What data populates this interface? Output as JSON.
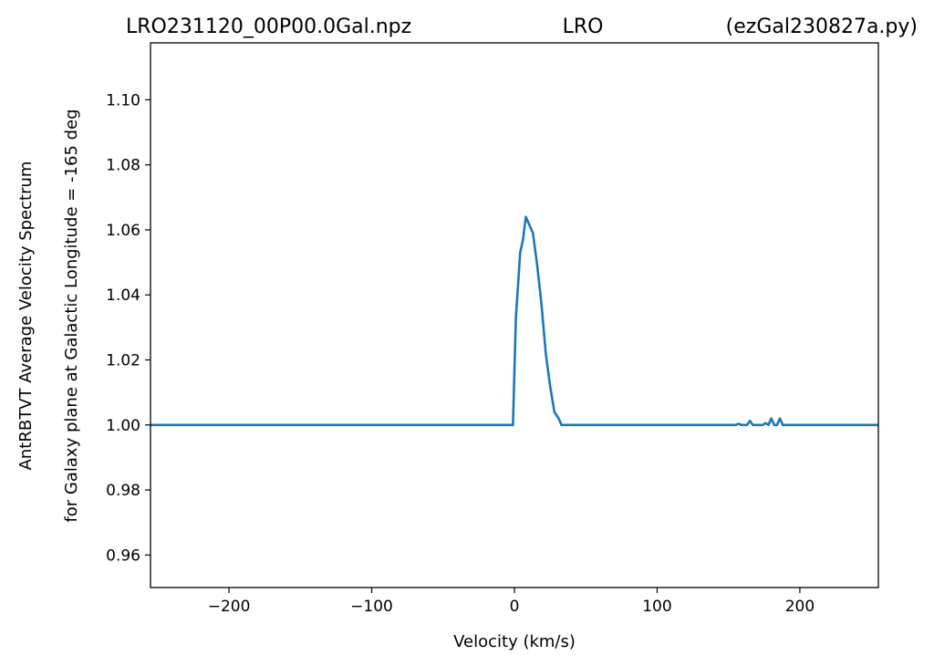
{
  "chart_data": {
    "type": "line",
    "title": {
      "left": "LRO231120_00P00.0Gal.npz",
      "center": "LRO",
      "right": "(ezGal230827a.py)"
    },
    "xlabel": "Velocity (km/s)",
    "ylabel": [
      "AntRBTVT Average Velocity Spectrum",
      "for Galaxy plane at Galactic Longitude = -165 deg"
    ],
    "xlim": [
      -255,
      255
    ],
    "ylim": [
      0.95,
      1.1175
    ],
    "xticks": [
      -200,
      -100,
      0,
      100,
      200
    ],
    "xtick_labels": [
      "−200",
      "−100",
      "0",
      "100",
      "200"
    ],
    "yticks": [
      0.96,
      0.98,
      1.0,
      1.02,
      1.04,
      1.06,
      1.08,
      1.1
    ],
    "ytick_labels": [
      "0.96",
      "0.98",
      "1.00",
      "1.02",
      "1.04",
      "1.06",
      "1.08",
      "1.10"
    ],
    "grid": false,
    "series": [
      {
        "color": "#1f77b4",
        "x": [
          -255,
          -1,
          1,
          4,
          6,
          8,
          10,
          13,
          16,
          19,
          22,
          25,
          28,
          31,
          33,
          35,
          155,
          157,
          159,
          163,
          165,
          167,
          174,
          176,
          178,
          180,
          182,
          184,
          186,
          188,
          255
        ],
        "y": [
          1.0,
          1.0,
          1.033,
          1.053,
          1.057,
          1.064,
          1.062,
          1.059,
          1.049,
          1.037,
          1.022,
          1.012,
          1.004,
          1.002,
          1.0,
          1.0,
          1.0,
          1.0004,
          1.0,
          1.0,
          1.0013,
          1.0,
          1.0,
          1.0006,
          1.0,
          1.002,
          1.0,
          1.0,
          1.002,
          1.0,
          1.0
        ]
      }
    ]
  }
}
